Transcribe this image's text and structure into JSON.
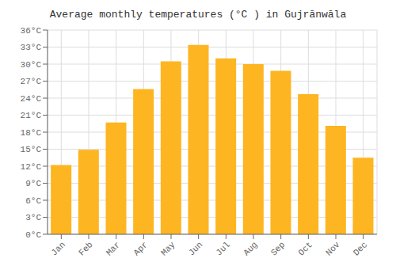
{
  "chart_data": {
    "type": "bar",
    "title": "Average monthly temperatures (°C ) in Gujrānwāla",
    "categories": [
      "Jan",
      "Feb",
      "Mar",
      "Apr",
      "May",
      "Jun",
      "Jul",
      "Aug",
      "Sep",
      "Oct",
      "Nov",
      "Dec"
    ],
    "values": [
      12.2,
      14.9,
      19.7,
      25.6,
      30.5,
      33.4,
      31.0,
      30.0,
      28.8,
      24.7,
      19.1,
      13.5
    ],
    "color": "#FDB521",
    "ylim": [
      0,
      36
    ],
    "yticks": [
      {
        "value": 0,
        "label": "0°C"
      },
      {
        "value": 3,
        "label": "3°C"
      },
      {
        "value": 6,
        "label": "6°C"
      },
      {
        "value": 9,
        "label": "9°C"
      },
      {
        "value": 12,
        "label": "12°C"
      },
      {
        "value": 15,
        "label": "15°C"
      },
      {
        "value": 18,
        "label": "18°C"
      },
      {
        "value": 21,
        "label": "21°C"
      },
      {
        "value": 24,
        "label": "24°C"
      },
      {
        "value": 27,
        "label": "27°C"
      },
      {
        "value": 30,
        "label": "30°C"
      },
      {
        "value": 33,
        "label": "33°C"
      },
      {
        "value": 36,
        "label": "36°C"
      }
    ],
    "grid": true
  }
}
